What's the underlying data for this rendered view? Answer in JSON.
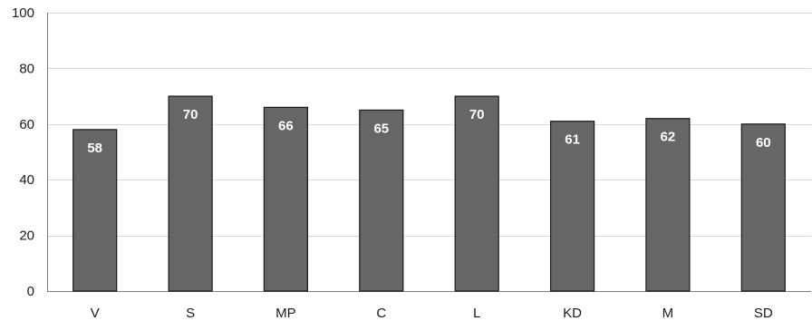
{
  "chart_data": {
    "type": "bar",
    "categories": [
      "V",
      "S",
      "MP",
      "C",
      "L",
      "KD",
      "M",
      "SD"
    ],
    "values": [
      58,
      70,
      66,
      65,
      70,
      61,
      62,
      60
    ],
    "data_labels": [
      "58",
      "70",
      "66",
      "65",
      "70",
      "61",
      "62",
      "60"
    ],
    "title": "",
    "xlabel": "",
    "ylabel": "",
    "ylim": [
      0,
      100
    ],
    "yticks": [
      0,
      20,
      40,
      60,
      80,
      100
    ],
    "ytick_labels": [
      "0",
      "20",
      "40",
      "60",
      "80",
      "100"
    ],
    "grid": true,
    "legend": "none",
    "colors": {
      "bar_fill": "#666666",
      "bar_stroke": "#1a1a1a",
      "data_label": "#ffffff",
      "grid": "#d9d9d9",
      "axis": "#808080",
      "tick_text": "#1a1a1a"
    }
  }
}
